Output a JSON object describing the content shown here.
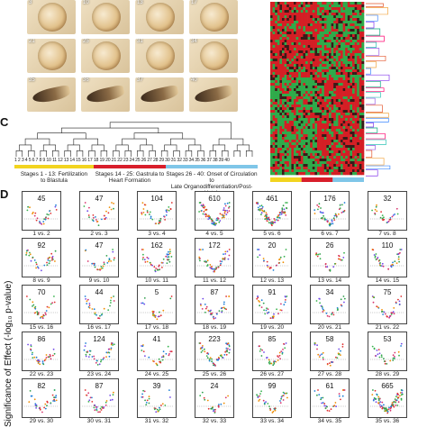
{
  "panels": {
    "c": "C",
    "d": "D"
  },
  "photos": [
    {
      "label": "3"
    },
    {
      "label": "10"
    },
    {
      "label": "13"
    },
    {
      "label": "17"
    },
    {
      "label": "21"
    },
    {
      "label": "25"
    },
    {
      "label": "31"
    },
    {
      "label": "34"
    },
    {
      "label": "35"
    },
    {
      "label": "36"
    },
    {
      "label": "37"
    },
    {
      "label": "40"
    }
  ],
  "dendrogram_ticks": "1 2 3 4 5 6 7 8 9 10 11 12 13 14 15 16 17 18 19 20 21 22 23 24 25 26 27 28 29 30 31 32 33 34 35 36 37 38 39 40",
  "stage_groups": [
    {
      "line1": "Stages 1 - 13: Fertilization",
      "line2": "to Blastula",
      "color": "#f2d41f"
    },
    {
      "line1": "Stages 14 - 25: Gastrula to",
      "line2": "Heart Formation",
      "color": "#d81e2b"
    },
    {
      "line1": "Stages 26 - 40: Onset of Circulation to",
      "line2": "Late Organodifferentiation/Post-Hatch",
      "color": "#7fc6e8"
    }
  ],
  "heatmap_bar_colors": [
    "#f2d41f",
    "#d81e2b",
    "#7fc6e8"
  ],
  "y_axis_label": "Significance of Effect (-log₁₀ p-value)",
  "comparisons": [
    {
      "count": "45",
      "label": "1 vs. 2"
    },
    {
      "count": "47",
      "label": "2 vs. 3"
    },
    {
      "count": "104",
      "label": "3 vs. 4"
    },
    {
      "count": "610",
      "label": "4 vs. 5"
    },
    {
      "count": "461",
      "label": "5 vs. 6"
    },
    {
      "count": "176",
      "label": "6 vs. 7"
    },
    {
      "count": "32",
      "label": "7 vs. 8"
    },
    {
      "count": "92",
      "label": "8 vs. 9"
    },
    {
      "count": "47",
      "label": "9 vs. 10"
    },
    {
      "count": "162",
      "label": "10 vs. 11"
    },
    {
      "count": "172",
      "label": "11 vs. 12"
    },
    {
      "count": "20",
      "label": "12 vs. 13"
    },
    {
      "count": "26",
      "label": "13 vs. 14"
    },
    {
      "count": "110",
      "label": "14 vs. 15"
    },
    {
      "count": "70",
      "label": "15 vs. 16"
    },
    {
      "count": "44",
      "label": "16 vs. 17"
    },
    {
      "count": "5",
      "label": "17 vs. 18"
    },
    {
      "count": "87",
      "label": "18 vs. 19"
    },
    {
      "count": "91",
      "label": "19 vs. 20"
    },
    {
      "count": "34",
      "label": "20 vs. 21"
    },
    {
      "count": "75",
      "label": "21 vs. 22"
    },
    {
      "count": "86",
      "label": "22 vs. 23"
    },
    {
      "count": "124",
      "label": "23 vs. 24"
    },
    {
      "count": "41",
      "label": "24 vs. 25"
    },
    {
      "count": "223",
      "label": "25 vs. 26"
    },
    {
      "count": "85",
      "label": "26 vs. 27"
    },
    {
      "count": "58",
      "label": "27 vs. 28"
    },
    {
      "count": "53",
      "label": "28 vs. 29"
    },
    {
      "count": "82",
      "label": "29 vs. 30"
    },
    {
      "count": "87",
      "label": "30 vs. 31"
    },
    {
      "count": "39",
      "label": "31 vs. 32"
    },
    {
      "count": "24",
      "label": "32 vs. 33"
    },
    {
      "count": "99",
      "label": "33 vs. 34"
    },
    {
      "count": "61",
      "label": "34 vs. 35"
    },
    {
      "count": "665",
      "label": "35 vs. 36"
    }
  ]
}
